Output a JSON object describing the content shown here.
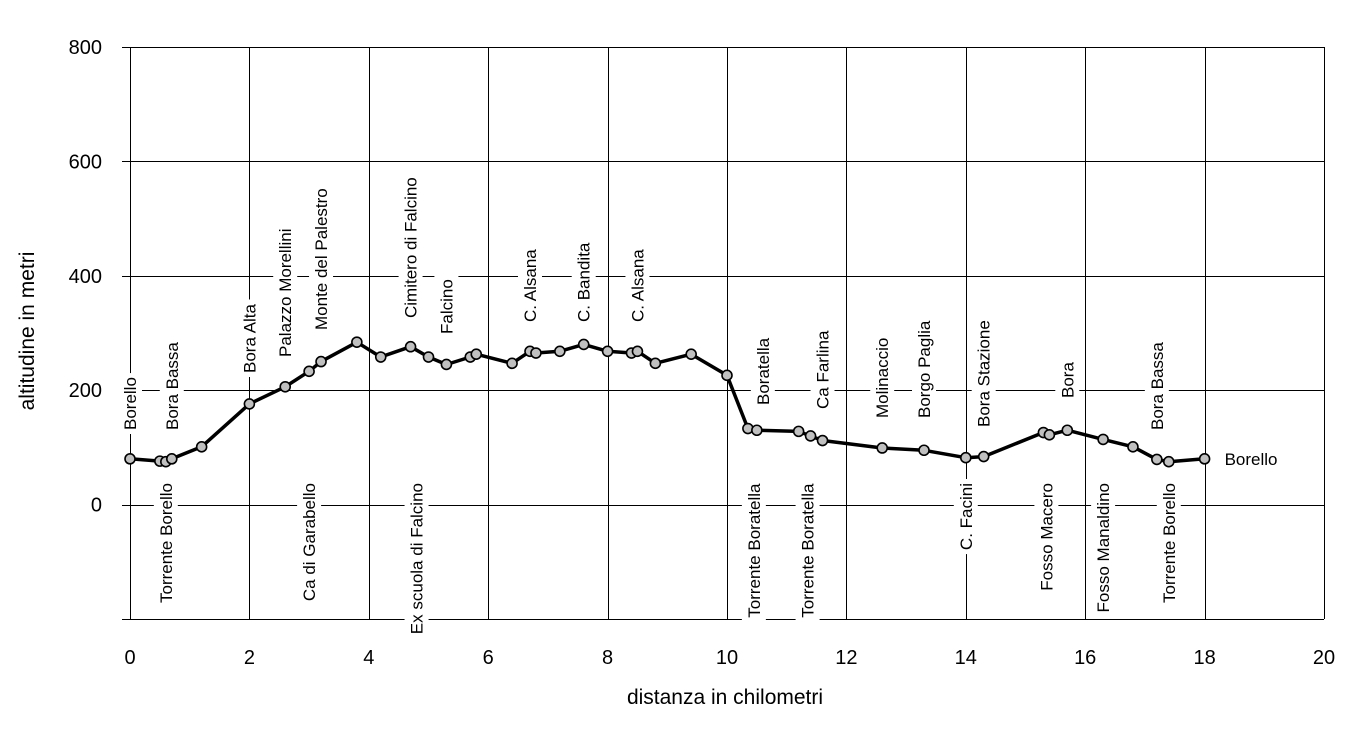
{
  "chart_data": {
    "type": "line",
    "xlabel": "distanza in chilometri",
    "ylabel": "altitudine  in metri",
    "xlim": [
      0,
      20
    ],
    "ylim": [
      -200,
      800
    ],
    "x_ticks": [
      "0",
      "2",
      "4",
      "6",
      "8",
      "10",
      "12",
      "14",
      "16",
      "18",
      "20"
    ],
    "y_ticks": [
      "0",
      "200",
      "400",
      "600",
      "800"
    ],
    "grid": true,
    "series": [
      {
        "points": [
          {
            "x": 0,
            "y": 80
          },
          {
            "x": 0.5,
            "y": 76
          },
          {
            "x": 0.6,
            "y": 75
          },
          {
            "x": 0.7,
            "y": 80
          },
          {
            "x": 1.2,
            "y": 101
          },
          {
            "x": 2.0,
            "y": 176
          },
          {
            "x": 2.6,
            "y": 206
          },
          {
            "x": 3.0,
            "y": 233
          },
          {
            "x": 3.2,
            "y": 250
          },
          {
            "x": 3.8,
            "y": 284
          },
          {
            "x": 4.2,
            "y": 258
          },
          {
            "x": 4.7,
            "y": 276
          },
          {
            "x": 5.0,
            "y": 258
          },
          {
            "x": 5.3,
            "y": 245
          },
          {
            "x": 5.7,
            "y": 258
          },
          {
            "x": 5.8,
            "y": 263
          },
          {
            "x": 6.4,
            "y": 247
          },
          {
            "x": 6.7,
            "y": 268
          },
          {
            "x": 6.8,
            "y": 265
          },
          {
            "x": 7.2,
            "y": 268
          },
          {
            "x": 7.6,
            "y": 280
          },
          {
            "x": 8.0,
            "y": 268
          },
          {
            "x": 8.4,
            "y": 265
          },
          {
            "x": 8.5,
            "y": 268
          },
          {
            "x": 8.8,
            "y": 247
          },
          {
            "x": 9.4,
            "y": 263
          },
          {
            "x": 10.0,
            "y": 226
          },
          {
            "x": 10.35,
            "y": 133
          },
          {
            "x": 10.5,
            "y": 130
          },
          {
            "x": 11.2,
            "y": 128
          },
          {
            "x": 11.4,
            "y": 120
          },
          {
            "x": 11.6,
            "y": 112
          },
          {
            "x": 12.6,
            "y": 99
          },
          {
            "x": 13.3,
            "y": 95
          },
          {
            "x": 14.0,
            "y": 82
          },
          {
            "x": 14.3,
            "y": 84
          },
          {
            "x": 15.3,
            "y": 126
          },
          {
            "x": 15.4,
            "y": 122
          },
          {
            "x": 15.7,
            "y": 130
          },
          {
            "x": 16.3,
            "y": 114
          },
          {
            "x": 16.8,
            "y": 101
          },
          {
            "x": 17.2,
            "y": 79
          },
          {
            "x": 17.4,
            "y": 75
          },
          {
            "x": 18.0,
            "y": 80
          }
        ]
      }
    ],
    "annotations": [
      {
        "text": "Borello",
        "x": 0.0,
        "pos": "above"
      },
      {
        "text": "Bora Bassa",
        "x": 0.7,
        "pos": "above"
      },
      {
        "text": "Bora Alta",
        "x": 2.0,
        "pos": "above"
      },
      {
        "text": "Palazzo Morellini",
        "x": 2.6,
        "pos": "above"
      },
      {
        "text": "Monte del Palestro",
        "x": 3.2,
        "pos": "above"
      },
      {
        "text": "Cimitero di Falcino",
        "x": 4.7,
        "pos": "above"
      },
      {
        "text": "Falcino",
        "x": 5.3,
        "pos": "above"
      },
      {
        "text": "C. Alsana",
        "x": 6.7,
        "pos": "above"
      },
      {
        "text": "C. Bandita",
        "x": 7.6,
        "pos": "above"
      },
      {
        "text": "C. Alsana",
        "x": 8.5,
        "pos": "above"
      },
      {
        "text": "Boratella",
        "x": 10.6,
        "pos": "above"
      },
      {
        "text": "Ca Farlina",
        "x": 11.6,
        "pos": "above"
      },
      {
        "text": "Molinaccio",
        "x": 12.6,
        "pos": "above"
      },
      {
        "text": "Borgo Paglia",
        "x": 13.3,
        "pos": "above"
      },
      {
        "text": "Bora Stazione",
        "x": 14.3,
        "pos": "above"
      },
      {
        "text": "Bora",
        "x": 15.7,
        "pos": "above"
      },
      {
        "text": "Bora Bassa",
        "x": 17.2,
        "pos": "above"
      },
      {
        "text": "Torrente Borello",
        "x": 0.6,
        "pos": "below"
      },
      {
        "text": "Ca di Garabello",
        "x": 3.0,
        "pos": "below"
      },
      {
        "text": "Ex scuola di Falcino",
        "x": 4.8,
        "pos": "below"
      },
      {
        "text": "Torrente Boratella",
        "x": 10.45,
        "pos": "below"
      },
      {
        "text": "Torrente Boratella",
        "x": 11.35,
        "pos": "below"
      },
      {
        "text": "C. Facini",
        "x": 14.0,
        "pos": "below"
      },
      {
        "text": "Fosso Macero",
        "x": 15.35,
        "pos": "below"
      },
      {
        "text": "Fosso Manaldino",
        "x": 16.3,
        "pos": "below"
      },
      {
        "text": "Torrente Borello",
        "x": 17.4,
        "pos": "below"
      },
      {
        "text": "Borello",
        "x": 18.0,
        "pos": "right"
      }
    ]
  }
}
